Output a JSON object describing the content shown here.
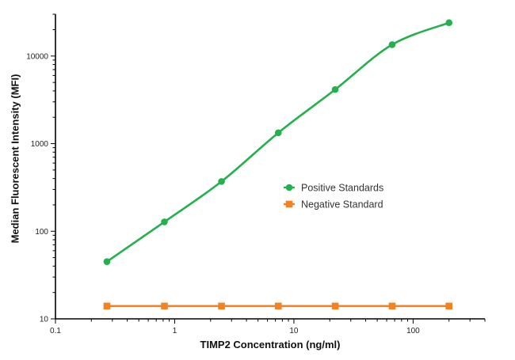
{
  "chart_data": {
    "type": "line",
    "xlabel": "TIMP2 Concentration (ng/ml)",
    "ylabel": "Median Fluorescent Intensity (MFI)",
    "xscale": "log",
    "yscale": "log",
    "xlim": [
      0.1,
      400
    ],
    "ylim": [
      10,
      30000
    ],
    "x_ticks": [
      0.1,
      1,
      10,
      100
    ],
    "x_tick_labels": [
      "0.1",
      "1",
      "10",
      "100"
    ],
    "y_ticks": [
      10,
      100,
      1000,
      10000
    ],
    "y_tick_labels": [
      "10",
      "100",
      "1000",
      "10000"
    ],
    "grid": false,
    "legend_position": "center-right",
    "series": [
      {
        "name": "Positive Standards",
        "color": "#22b14c",
        "marker": "circle",
        "fit": "smooth curve",
        "x": [
          0.27,
          0.82,
          2.47,
          7.4,
          22.2,
          66.7,
          200
        ],
        "y": [
          45,
          128,
          370,
          1330,
          4150,
          13500,
          24000
        ]
      },
      {
        "name": "Negative Standard",
        "color": "#f58220",
        "marker": "square",
        "fit": "straight line",
        "x": [
          0.27,
          0.82,
          2.47,
          7.4,
          22.2,
          66.7,
          200
        ],
        "y": [
          14,
          14,
          14,
          14,
          14,
          14,
          14
        ]
      }
    ]
  }
}
